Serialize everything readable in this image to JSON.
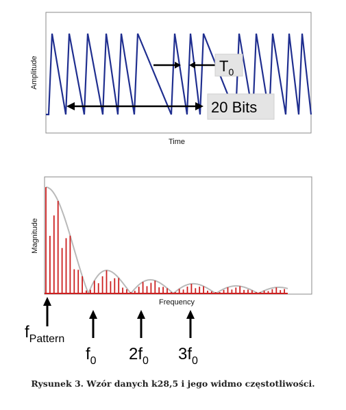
{
  "top_chart": {
    "ylabel": "Amplitude",
    "xlabel": "Time",
    "period_label": "T",
    "period_sub": "0",
    "bits_label": "20 Bits",
    "colors": {
      "signal": "#1f2e8f",
      "arrow": "#000000"
    }
  },
  "bottom_chart": {
    "ylabel": "Magnitude",
    "xlabel": "Frequency",
    "colors": {
      "bars": "#cc1f1f",
      "envelope": "#b9b9b9",
      "baseline": "#cc1f1f"
    },
    "markers": [
      {
        "main": "f",
        "sub": "Pattern"
      },
      {
        "main": "f",
        "sub": "0"
      },
      {
        "main": "2f",
        "sub": "0"
      },
      {
        "main": "3f",
        "sub": "0"
      }
    ]
  },
  "caption": "Rysunek 3. Wzór danych k28,5 i jego widmo częstotliwości."
}
